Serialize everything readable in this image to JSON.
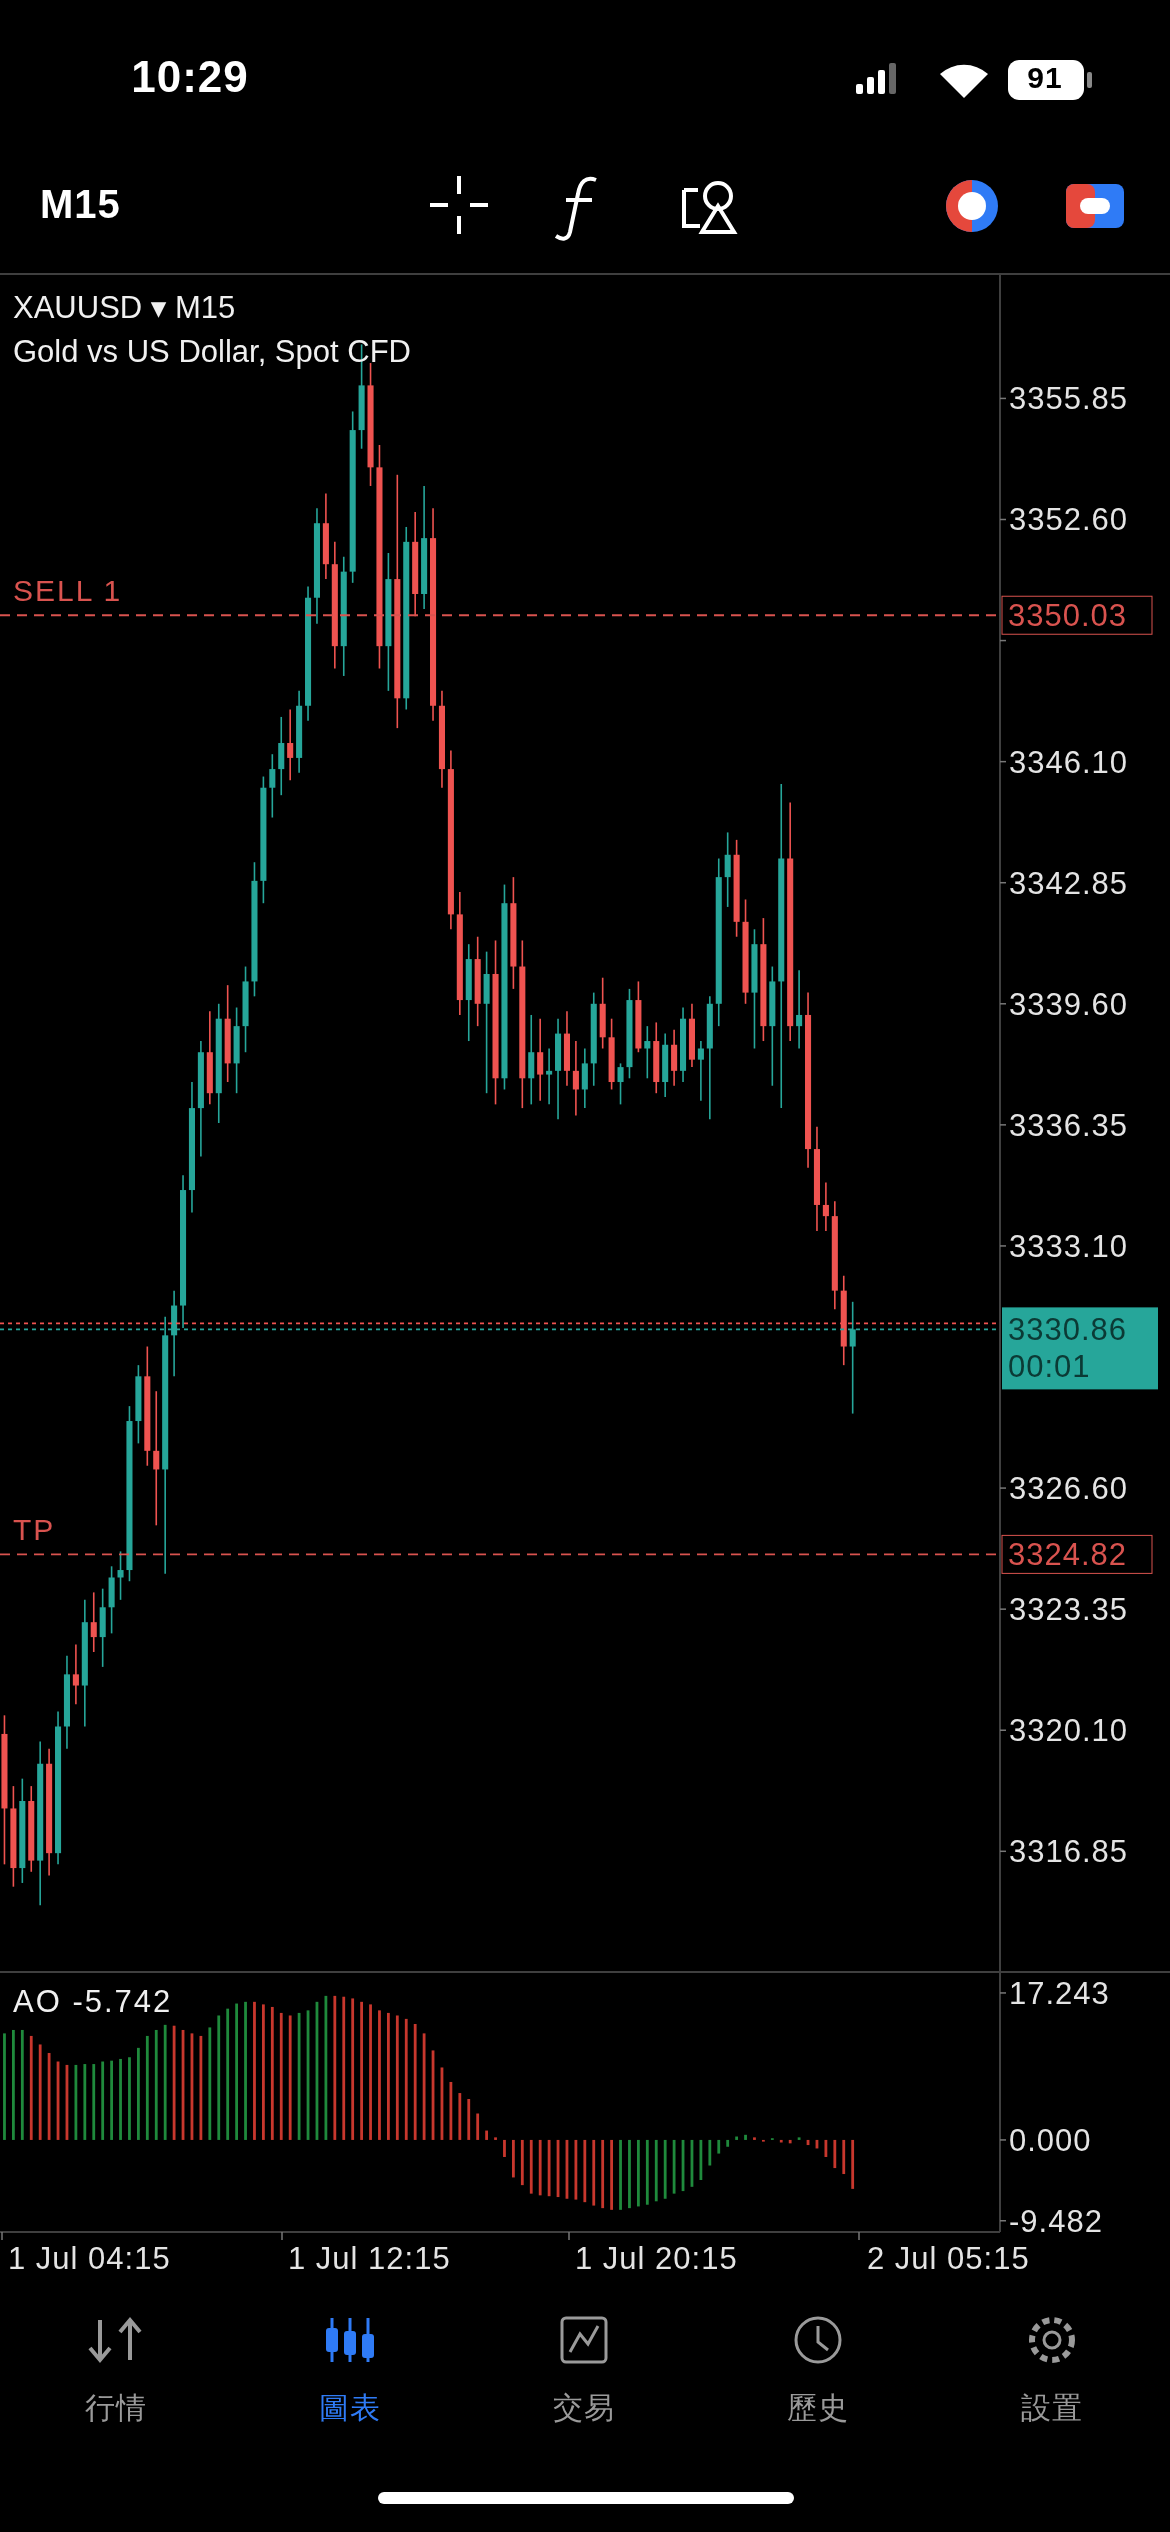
{
  "chart_data": [
    {
      "type": "candlestick",
      "title": "XAUUSD ▾ M15",
      "subtitle": "Gold vs US Dollar, Spot CFD",
      "categories": [
        null,
        null,
        null,
        null,
        null,
        null,
        null,
        null,
        null,
        null,
        null,
        null,
        null,
        null,
        null,
        null,
        null,
        null,
        null,
        null,
        null,
        null,
        null,
        null,
        null,
        null,
        null,
        null,
        null,
        null,
        null,
        null,
        null,
        null,
        null,
        null,
        null,
        null,
        null,
        null,
        null,
        null,
        null,
        null,
        null,
        null,
        null,
        null,
        null,
        null,
        null,
        null,
        null,
        null,
        null,
        null,
        null,
        null,
        null,
        null,
        null,
        null,
        null,
        null,
        null,
        null,
        null,
        null,
        null,
        null,
        null,
        null,
        null,
        null,
        null,
        null,
        null,
        null,
        null,
        null,
        null,
        null,
        null,
        null,
        null,
        null,
        null,
        null,
        null,
        null,
        null,
        null,
        null,
        null,
        null,
        null,
        null,
        null,
        null,
        null,
        null,
        null,
        null,
        null,
        null,
        null,
        null,
        null,
        null,
        null,
        null,
        null
      ],
      "ohlc": [
        [
          3320.0,
          3320.5,
          3316.5,
          3318.0
        ],
        [
          3318.0,
          3318.6,
          3315.9,
          3316.4
        ],
        [
          3316.4,
          3318.8,
          3316.0,
          3318.2
        ],
        [
          3318.2,
          3318.6,
          3316.3,
          3316.6
        ],
        [
          3316.6,
          3319.8,
          3315.4,
          3319.2
        ],
        [
          3319.2,
          3319.6,
          3316.2,
          3316.8
        ],
        [
          3316.8,
          3320.6,
          3316.5,
          3320.2
        ],
        [
          3320.2,
          3322.1,
          3319.6,
          3321.6
        ],
        [
          3321.6,
          3322.4,
          3320.8,
          3321.3
        ],
        [
          3321.3,
          3323.6,
          3320.2,
          3323.0
        ],
        [
          3323.0,
          3323.8,
          3322.2,
          3322.6
        ],
        [
          3322.6,
          3323.9,
          3321.8,
          3323.4
        ],
        [
          3323.4,
          3324.5,
          3322.7,
          3324.2
        ],
        [
          3324.2,
          3324.9,
          3323.6,
          3324.4
        ],
        [
          3324.4,
          3328.8,
          3324.1,
          3328.4
        ],
        [
          3328.4,
          3329.9,
          3327.8,
          3329.6
        ],
        [
          3329.6,
          3330.4,
          3327.2,
          3327.6
        ],
        [
          3327.6,
          3329.2,
          3325.6,
          3327.1
        ],
        [
          3327.1,
          3331.2,
          3324.3,
          3330.7
        ],
        [
          3330.7,
          3331.9,
          3329.6,
          3331.5
        ],
        [
          3331.5,
          3335.0,
          3330.9,
          3334.6
        ],
        [
          3334.6,
          3337.5,
          3334.0,
          3336.8
        ],
        [
          3336.8,
          3338.6,
          3335.5,
          3338.3
        ],
        [
          3338.3,
          3339.4,
          3336.9,
          3337.2
        ],
        [
          3337.2,
          3339.6,
          3336.4,
          3339.2
        ],
        [
          3339.2,
          3340.1,
          3337.5,
          3338.0
        ],
        [
          3338.0,
          3339.5,
          3337.2,
          3339.0
        ],
        [
          3339.0,
          3340.6,
          3338.3,
          3340.2
        ],
        [
          3340.2,
          3343.4,
          3339.8,
          3342.9
        ],
        [
          3342.9,
          3345.7,
          3342.3,
          3345.4
        ],
        [
          3345.4,
          3346.3,
          3344.6,
          3345.9
        ],
        [
          3345.9,
          3347.3,
          3345.2,
          3346.6
        ],
        [
          3346.6,
          3347.5,
          3345.6,
          3346.2
        ],
        [
          3346.2,
          3348.0,
          3345.8,
          3347.6
        ],
        [
          3347.6,
          3350.8,
          3347.2,
          3350.5
        ],
        [
          3350.5,
          3352.9,
          3349.8,
          3352.5
        ],
        [
          3352.5,
          3353.3,
          3351.0,
          3351.4
        ],
        [
          3351.4,
          3352.0,
          3348.6,
          3349.2
        ],
        [
          3349.2,
          3351.6,
          3348.4,
          3351.2
        ],
        [
          3351.2,
          3355.5,
          3350.9,
          3355.0
        ],
        [
          3355.0,
          3357.3,
          3354.5,
          3356.2
        ],
        [
          3356.2,
          3356.8,
          3353.5,
          3354.0
        ],
        [
          3354.0,
          3354.6,
          3348.6,
          3349.2
        ],
        [
          3349.2,
          3351.7,
          3348.0,
          3351.0
        ],
        [
          3351.0,
          3353.8,
          3347.0,
          3347.8
        ],
        [
          3347.8,
          3352.4,
          3347.5,
          3352.0
        ],
        [
          3352.0,
          3352.8,
          3350.0,
          3350.6
        ],
        [
          3350.6,
          3353.5,
          3350.2,
          3352.1
        ],
        [
          3352.1,
          3352.9,
          3347.2,
          3347.6
        ],
        [
          3347.6,
          3348.0,
          3345.4,
          3345.9
        ],
        [
          3345.9,
          3346.4,
          3341.6,
          3342.0
        ],
        [
          3342.0,
          3342.6,
          3339.3,
          3339.7
        ],
        [
          3339.7,
          3341.2,
          3338.6,
          3340.8
        ],
        [
          3340.8,
          3341.4,
          3339.0,
          3339.6
        ],
        [
          3339.6,
          3341.0,
          3337.2,
          3340.4
        ],
        [
          3340.4,
          3341.3,
          3336.9,
          3337.6
        ],
        [
          3337.6,
          3342.8,
          3337.3,
          3342.3
        ],
        [
          3342.3,
          3343.0,
          3340.0,
          3340.6
        ],
        [
          3340.6,
          3341.3,
          3336.8,
          3337.6
        ],
        [
          3337.6,
          3339.3,
          3336.9,
          3338.3
        ],
        [
          3338.3,
          3339.2,
          3337.0,
          3337.7
        ],
        [
          3337.7,
          3338.4,
          3336.9,
          3337.8
        ],
        [
          3337.8,
          3339.2,
          3336.5,
          3338.8
        ],
        [
          3338.8,
          3339.4,
          3337.4,
          3337.8
        ],
        [
          3337.8,
          3338.6,
          3336.6,
          3337.3
        ],
        [
          3337.3,
          3338.4,
          3336.8,
          3338.0
        ],
        [
          3338.0,
          3339.9,
          3337.4,
          3339.6
        ],
        [
          3339.6,
          3340.3,
          3338.4,
          3338.7
        ],
        [
          3338.7,
          3339.2,
          3337.3,
          3337.5
        ],
        [
          3337.5,
          3338.0,
          3336.9,
          3337.9
        ],
        [
          3337.9,
          3340.0,
          3337.6,
          3339.7
        ],
        [
          3339.7,
          3340.2,
          3338.3,
          3338.4
        ],
        [
          3338.4,
          3339.0,
          3337.6,
          3338.6
        ],
        [
          3338.6,
          3339.1,
          3337.2,
          3337.5
        ],
        [
          3337.5,
          3338.8,
          3337.1,
          3338.5
        ],
        [
          3338.5,
          3338.9,
          3337.4,
          3337.8
        ],
        [
          3337.8,
          3339.5,
          3337.5,
          3339.2
        ],
        [
          3339.2,
          3339.6,
          3337.9,
          3338.1
        ],
        [
          3338.1,
          3338.6,
          3337.0,
          3338.4
        ],
        [
          3338.4,
          3339.8,
          3336.5,
          3339.6
        ],
        [
          3339.6,
          3343.5,
          3339.0,
          3343.0
        ],
        [
          3343.0,
          3344.2,
          3342.2,
          3343.6
        ],
        [
          3343.6,
          3344.0,
          3341.4,
          3341.8
        ],
        [
          3341.8,
          3342.4,
          3339.6,
          3339.9
        ],
        [
          3339.9,
          3341.6,
          3338.4,
          3341.2
        ],
        [
          3341.2,
          3341.9,
          3338.6,
          3339.0
        ],
        [
          3339.0,
          3340.6,
          3337.4,
          3340.2
        ],
        [
          3340.2,
          3345.5,
          3336.8,
          3343.5
        ],
        [
          3343.5,
          3345.0,
          3338.6,
          3339.0
        ],
        [
          3339.0,
          3340.5,
          3338.4,
          3339.3
        ],
        [
          3339.3,
          3339.9,
          3335.2,
          3335.7
        ],
        [
          3335.7,
          3336.3,
          3333.5,
          3334.2
        ],
        [
          3334.2,
          3334.8,
          3333.5,
          3333.9
        ],
        [
          3333.9,
          3334.3,
          3331.4,
          3331.9
        ],
        [
          3331.9,
          3332.3,
          3329.9,
          3330.4
        ],
        [
          3330.4,
          3331.6,
          3328.6,
          3330.86
        ],
        null,
        null,
        null,
        null,
        null,
        null,
        null,
        null,
        null,
        null,
        null,
        null,
        null,
        null,
        null,
        null
      ],
      "ylim": [
        3313.61,
        3359.19
      ],
      "yticks": [
        3355.85,
        {
          "value": 3352.6,
          "label": "3352.60"
        },
        {
          "value": 3349.35,
          "label": null
        },
        {
          "value": 3346.1,
          "label": "3346.10"
        },
        3342.85,
        {
          "value": 3339.6,
          "label": "3339.60"
        },
        3336.35,
        {
          "value": 3333.1,
          "label": "3333.10"
        },
        {
          "value": 3326.6,
          "label": "3326.60"
        },
        3323.35,
        {
          "value": 3320.1,
          "label": "3320.10"
        },
        3316.85,
        3350.03,
        3330.86,
        3324.82
      ],
      "tick_labels": "y",
      "ref_lines": [
        {
          "axis": "y",
          "value": 3350.03,
          "label": "SELL 1",
          "color": "#d9534f",
          "line_style": "dashed"
        },
        {
          "axis": "y",
          "value": 3324.82,
          "label": "TP",
          "color": "#d9534f",
          "line_style": "dashed"
        },
        {
          "axis": "y",
          "value": 3331.02,
          "label": null,
          "color": "#ef5350",
          "line_style": "dotted"
        },
        {
          "axis": "y",
          "value": 3330.86,
          "label": null,
          "color": "#26a69a",
          "line_style": "dotted"
        }
      ],
      "annotations": [
        "10:29",
        "91",
        "M15",
        "行情",
        "圖表",
        "交易",
        "歷史",
        "設置",
        "00:01"
      ]
    },
    {
      "type": "bar",
      "title": "AO -5.742",
      "categories": [
        null,
        null,
        null,
        null,
        null,
        null,
        null,
        null,
        null,
        null,
        null,
        null,
        null,
        null,
        null,
        null,
        null,
        null,
        null,
        null,
        null,
        null,
        null,
        null,
        null,
        null,
        null,
        null,
        null,
        null,
        null,
        null,
        null,
        null,
        null,
        null,
        null,
        null,
        null,
        null,
        null,
        null,
        null,
        null,
        null,
        null,
        null,
        null,
        null,
        null,
        null,
        null,
        null,
        null,
        null,
        null,
        null,
        null,
        null,
        null,
        null,
        null,
        null,
        null,
        null,
        null,
        null,
        null,
        null,
        null,
        null,
        null,
        null,
        null,
        null,
        null,
        null,
        null,
        null,
        null,
        null,
        null,
        null,
        null,
        null,
        null,
        null,
        null,
        null,
        null,
        null,
        null,
        null,
        null,
        null,
        null,
        null,
        null,
        null,
        null,
        null,
        null,
        null,
        null,
        null,
        null,
        null,
        null,
        null,
        null,
        null,
        null
      ],
      "values": [
        12.5,
        12.9,
        12.9,
        12.2,
        11.2,
        10.2,
        9.2,
        8.8,
        8.8,
        8.9,
        8.9,
        9.2,
        9.3,
        9.5,
        9.7,
        10.8,
        12.2,
        12.9,
        13.5,
        13.4,
        12.9,
        12.5,
        12.2,
        13.2,
        14.6,
        15.4,
        16.0,
        16.2,
        16.2,
        15.9,
        15.6,
        14.9,
        14.6,
        14.9,
        15.2,
        16.2,
        16.9,
        16.9,
        16.8,
        16.6,
        16.2,
        15.9,
        15.2,
        14.9,
        14.6,
        14.2,
        13.6,
        12.5,
        10.5,
        8.5,
        6.8,
        5.5,
        4.8,
        3.1,
        1.1,
        0.3,
        -2.0,
        -4.4,
        -5.3,
        -6.3,
        -6.5,
        -6.6,
        -6.7,
        -6.9,
        -7.0,
        -7.3,
        -7.7,
        -8.0,
        -8.2,
        -8.2,
        -8.0,
        -7.8,
        -7.6,
        -7.2,
        -6.9,
        -6.3,
        -6.0,
        -5.5,
        -4.7,
        -3.0,
        -1.6,
        -0.8,
        0.4,
        0.6,
        0.3,
        -0.2,
        0.2,
        -0.3,
        -0.4,
        0.3,
        -0.6,
        -1.0,
        -2.0,
        -3.3,
        -4.0,
        -5.742,
        null,
        null,
        null,
        null,
        null,
        null,
        null,
        null,
        null,
        null,
        null,
        null,
        null,
        null,
        null,
        null
      ],
      "colors": [
        "#1f8a3c",
        "#1f8a3c",
        "#1f8a3c",
        "#c8372d",
        "#c8372d",
        "#c8372d",
        "#c8372d",
        "#c8372d",
        "#1f8a3c",
        "#1f8a3c",
        "#1f8a3c",
        "#1f8a3c",
        "#1f8a3c",
        "#1f8a3c",
        "#1f8a3c",
        "#1f8a3c",
        "#1f8a3c",
        "#1f8a3c",
        "#1f8a3c",
        "#c8372d",
        "#c8372d",
        "#c8372d",
        "#c8372d",
        "#1f8a3c",
        "#1f8a3c",
        "#1f8a3c",
        "#1f8a3c",
        "#1f8a3c",
        "#c8372d",
        "#c8372d",
        "#c8372d",
        "#c8372d",
        "#c8372d",
        "#1f8a3c",
        "#1f8a3c",
        "#1f8a3c",
        "#1f8a3c",
        "#c8372d",
        "#c8372d",
        "#c8372d",
        "#c8372d",
        "#c8372d",
        "#c8372d",
        "#c8372d",
        "#c8372d",
        "#c8372d",
        "#c8372d",
        "#c8372d",
        "#c8372d",
        "#c8372d",
        "#c8372d",
        "#c8372d",
        "#c8372d",
        "#c8372d",
        "#c8372d",
        "#c8372d",
        "#c8372d",
        "#c8372d",
        "#c8372d",
        "#c8372d",
        "#c8372d",
        "#c8372d",
        "#c8372d",
        "#c8372d",
        "#c8372d",
        "#c8372d",
        "#c8372d",
        "#c8372d",
        "#c8372d",
        "#1f8a3c",
        "#1f8a3c",
        "#1f8a3c",
        "#1f8a3c",
        "#1f8a3c",
        "#1f8a3c",
        "#1f8a3c",
        "#1f8a3c",
        "#1f8a3c",
        "#1f8a3c",
        "#1f8a3c",
        "#1f8a3c",
        "#1f8a3c",
        "#1f8a3c",
        "#1f8a3c",
        "#c8372d",
        "#c8372d",
        "#1f8a3c",
        "#c8372d",
        "#c8372d",
        "#1f8a3c",
        "#c8372d",
        "#c8372d",
        "#c8372d",
        "#c8372d",
        "#c8372d",
        "#c8372d",
        null,
        null,
        null,
        null,
        null,
        null,
        null,
        null,
        null,
        null,
        null,
        null,
        null,
        null,
        null,
        null
      ],
      "ylim": [
        -10.8,
        19.7
      ],
      "yticks": [
        17.243,
        {
          "value": 0,
          "label": "0.000"
        },
        -9.482
      ],
      "annotations": [
        "1 Jul 04:15",
        "1 Jul 12:15",
        "1 Jul 20:15",
        "2 Jul 05:15"
      ]
    }
  ]
}
